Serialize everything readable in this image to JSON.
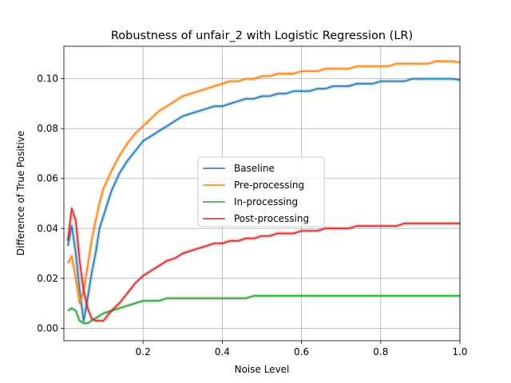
{
  "chart_data": {
    "type": "line",
    "title": "Robustness of unfair_2 with Logistic Regression (LR)",
    "xlabel": "Noise Level",
    "ylabel": "Difference of True Positive",
    "xlim": [
      0.0,
      1.0
    ],
    "ylim": [
      -0.005,
      0.113
    ],
    "xticks": [
      0.2,
      0.4,
      0.6,
      0.8,
      1.0
    ],
    "xtick_labels": [
      "0.2",
      "0.4",
      "0.6",
      "0.8",
      "1.0"
    ],
    "yticks": [
      0.0,
      0.02,
      0.04,
      0.06,
      0.08,
      0.1
    ],
    "ytick_labels": [
      "0.00",
      "0.02",
      "0.04",
      "0.06",
      "0.08",
      "0.10"
    ],
    "grid": true,
    "legend_position": "center",
    "x": [
      0.01,
      0.02,
      0.03,
      0.04,
      0.05,
      0.06,
      0.07,
      0.08,
      0.09,
      0.1,
      0.12,
      0.14,
      0.16,
      0.18,
      0.2,
      0.22,
      0.24,
      0.26,
      0.28,
      0.3,
      0.32,
      0.34,
      0.36,
      0.38,
      0.4,
      0.42,
      0.44,
      0.46,
      0.48,
      0.5,
      0.52,
      0.54,
      0.56,
      0.58,
      0.6,
      0.62,
      0.64,
      0.66,
      0.68,
      0.7,
      0.72,
      0.74,
      0.76,
      0.78,
      0.8,
      0.82,
      0.84,
      0.86,
      0.88,
      0.9,
      0.92,
      0.94,
      0.96,
      0.98,
      1.0
    ],
    "series": [
      {
        "name": "Baseline",
        "color": "#1f77b4",
        "values": [
          0.033,
          0.041,
          0.03,
          0.015,
          0.003,
          0.012,
          0.022,
          0.03,
          0.04,
          0.045,
          0.055,
          0.062,
          0.067,
          0.071,
          0.075,
          0.077,
          0.079,
          0.081,
          0.083,
          0.085,
          0.086,
          0.087,
          0.088,
          0.089,
          0.089,
          0.09,
          0.091,
          0.092,
          0.092,
          0.093,
          0.093,
          0.094,
          0.094,
          0.095,
          0.095,
          0.095,
          0.096,
          0.096,
          0.097,
          0.097,
          0.097,
          0.098,
          0.098,
          0.098,
          0.099,
          0.099,
          0.099,
          0.099,
          0.1,
          0.1,
          0.1,
          0.1,
          0.1,
          0.1,
          0.0995
        ]
      },
      {
        "name": "Pre-processing",
        "color": "#ff7f0e",
        "values": [
          0.026,
          0.029,
          0.02,
          0.01,
          0.015,
          0.025,
          0.035,
          0.043,
          0.05,
          0.056,
          0.063,
          0.069,
          0.074,
          0.078,
          0.081,
          0.084,
          0.087,
          0.089,
          0.091,
          0.093,
          0.094,
          0.095,
          0.096,
          0.097,
          0.098,
          0.099,
          0.099,
          0.1,
          0.1,
          0.101,
          0.101,
          0.102,
          0.102,
          0.102,
          0.103,
          0.103,
          0.103,
          0.104,
          0.104,
          0.104,
          0.104,
          0.105,
          0.105,
          0.105,
          0.105,
          0.105,
          0.106,
          0.106,
          0.106,
          0.106,
          0.106,
          0.107,
          0.107,
          0.107,
          0.1065
        ]
      },
      {
        "name": "In-processing",
        "color": "#2ca02c",
        "values": [
          0.007,
          0.008,
          0.007,
          0.003,
          0.002,
          0.002,
          0.003,
          0.004,
          0.005,
          0.006,
          0.007,
          0.008,
          0.009,
          0.01,
          0.011,
          0.011,
          0.011,
          0.012,
          0.012,
          0.012,
          0.012,
          0.012,
          0.012,
          0.012,
          0.012,
          0.012,
          0.012,
          0.012,
          0.013,
          0.013,
          0.013,
          0.013,
          0.013,
          0.013,
          0.013,
          0.013,
          0.013,
          0.013,
          0.013,
          0.013,
          0.013,
          0.013,
          0.013,
          0.013,
          0.013,
          0.013,
          0.013,
          0.013,
          0.013,
          0.013,
          0.013,
          0.013,
          0.013,
          0.013,
          0.013
        ]
      },
      {
        "name": "Post-processing",
        "color": "#d62728",
        "values": [
          0.035,
          0.048,
          0.043,
          0.027,
          0.015,
          0.008,
          0.004,
          0.003,
          0.003,
          0.003,
          0.007,
          0.01,
          0.014,
          0.018,
          0.021,
          0.023,
          0.025,
          0.027,
          0.028,
          0.03,
          0.031,
          0.032,
          0.033,
          0.034,
          0.034,
          0.035,
          0.035,
          0.036,
          0.036,
          0.037,
          0.037,
          0.038,
          0.038,
          0.038,
          0.039,
          0.039,
          0.039,
          0.04,
          0.04,
          0.04,
          0.04,
          0.041,
          0.041,
          0.041,
          0.041,
          0.041,
          0.041,
          0.042,
          0.042,
          0.042,
          0.042,
          0.042,
          0.042,
          0.042,
          0.042
        ]
      }
    ]
  }
}
